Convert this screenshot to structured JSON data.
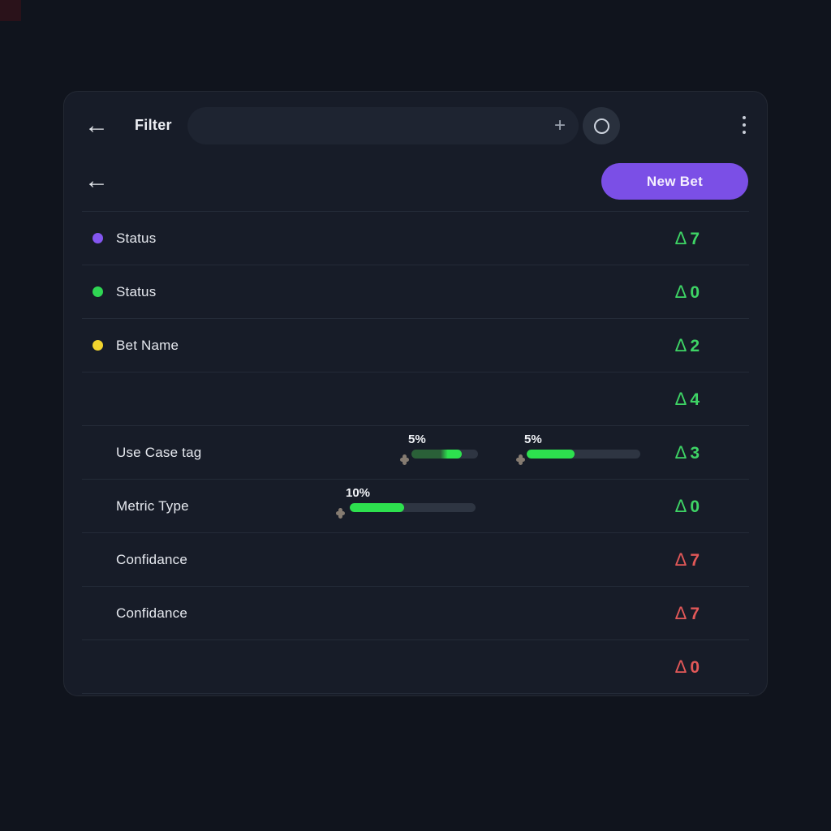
{
  "symbols": {
    "delta": "Δ",
    "back_arrow": "←",
    "plus": "+"
  },
  "topbar": {
    "filter_label": "Filter",
    "search_value": "",
    "search_placeholder": ""
  },
  "actions": {
    "new_bet_label": "New Bet"
  },
  "colors": {
    "accent_purple": "#7b4fe6",
    "delta_green": "#3ed465",
    "delta_red": "#e25858",
    "bar_green": "#2de04e"
  },
  "rows": [
    {
      "dot_color": "#8456f0",
      "label": "Status",
      "delta": "7",
      "delta_color": "#3ed465"
    },
    {
      "dot_color": "#2fd653",
      "label": "Status",
      "delta": "0",
      "delta_color": "#3ed465"
    },
    {
      "dot_color": "#f2d42e",
      "label": "Bet Name",
      "delta": "2",
      "delta_color": "#3ed465"
    },
    {
      "label": "",
      "delta": "4",
      "delta_color": "#3ed465"
    },
    {
      "label": "Use Case tag",
      "delta": "3",
      "delta_color": "#3ed465",
      "sliders": [
        {
          "value": "5%",
          "fill_pct": 75
        },
        {
          "value": "5%",
          "fill_pct": 42
        }
      ]
    },
    {
      "label": "Metric Type",
      "delta": "0",
      "delta_color": "#3ed465",
      "sliders": [
        {
          "value": "10%",
          "fill_pct": 43
        }
      ]
    },
    {
      "label": "Confidance",
      "delta": "7",
      "delta_color": "#e25858"
    },
    {
      "label": "Confidance",
      "delta": "7",
      "delta_color": "#e25858"
    },
    {
      "label": "",
      "delta": "0",
      "delta_color": "#e25858"
    }
  ]
}
